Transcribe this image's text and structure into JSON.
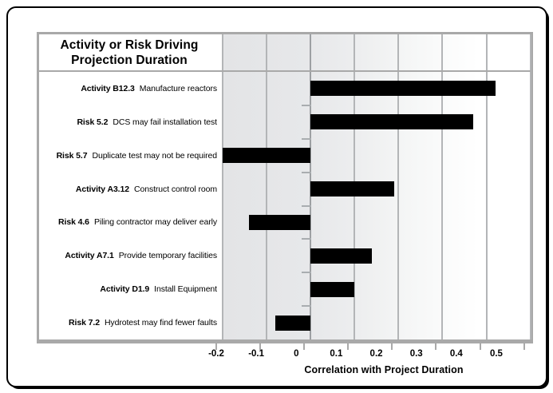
{
  "chart_data": {
    "type": "bar",
    "orientation": "horizontal",
    "title_lines": [
      "Activity or Risk Driving",
      "Projection Duration"
    ],
    "xlabel": "Correlation with Project Duration",
    "xlim": [
      -0.2,
      0.5
    ],
    "x_ticks": [
      -0.2,
      -0.1,
      0,
      0.1,
      0.2,
      0.3,
      0.4,
      0.5
    ],
    "x_tick_labels": [
      "-0.2",
      "-0.1",
      "0",
      "0.1",
      "0.2",
      "0.3",
      "0.4",
      "0.5"
    ],
    "grid": "vertical gridlines at each 0.1",
    "legend": "none",
    "bars": [
      {
        "id": "Activity B12.3",
        "desc": "Manufacture reactors",
        "value": 0.42
      },
      {
        "id": "Risk 5.2",
        "desc": "DCS may fail installation test",
        "value": 0.37
      },
      {
        "id": "Risk 5.7",
        "desc": "Duplicate test may not be required",
        "value": -0.2
      },
      {
        "id": "Activity A3.12",
        "desc": "Construct control room",
        "value": 0.19
      },
      {
        "id": "Risk 4.6",
        "desc": "Piling contractor may deliver early",
        "value": -0.14
      },
      {
        "id": "Activity A7.1",
        "desc": "Provide temporary facilities",
        "value": 0.14
      },
      {
        "id": "Activity D1.9",
        "desc": "Install Equipment",
        "value": 0.1
      },
      {
        "id": "Risk 7.2",
        "desc": "Hydrotest may find fewer faults",
        "value": -0.08
      }
    ],
    "colors": {
      "bar": "#000000",
      "gridline": "#b3b5b7",
      "chart_border": "#a9a9a9",
      "shade_left": "#e3e4e6",
      "frame_border": "#000000"
    }
  }
}
